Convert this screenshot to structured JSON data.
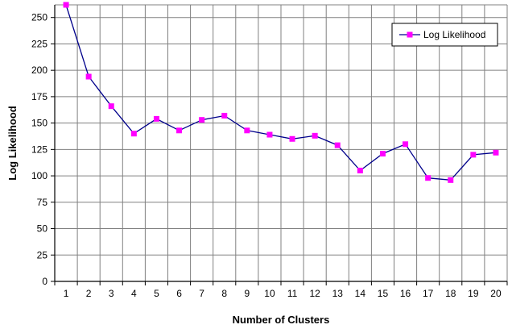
{
  "chart_data": {
    "type": "line",
    "title": "",
    "xlabel": "Number of Clusters",
    "ylabel": "Log  Likelihood",
    "x": [
      1,
      2,
      3,
      4,
      5,
      6,
      7,
      8,
      9,
      10,
      11,
      12,
      13,
      14,
      15,
      16,
      17,
      18,
      19,
      20
    ],
    "series": [
      {
        "name": "Log Likelihood",
        "values": [
          262,
          194,
          166,
          140,
          154,
          143,
          153,
          157,
          143,
          139,
          135,
          138,
          129,
          105,
          121,
          130,
          98,
          96,
          120,
          122
        ]
      }
    ],
    "xticks": [
      "1",
      "2",
      "3",
      "4",
      "5",
      "6",
      "7",
      "8",
      "9",
      "10",
      "11",
      "12",
      "13",
      "14",
      "15",
      "16",
      "17",
      "18",
      "19",
      "20"
    ],
    "yticks": [
      "0",
      "25",
      "50",
      "75",
      "100",
      "125",
      "150",
      "175",
      "200",
      "225",
      "250"
    ],
    "ylim": [
      0,
      262
    ],
    "xlim": [
      0.5,
      20.5
    ],
    "grid": true,
    "legend_position": "top-right",
    "colors": {
      "line": "#00008b",
      "marker": "#ff00ff",
      "grid": "#808080",
      "axis": "#000000"
    }
  }
}
